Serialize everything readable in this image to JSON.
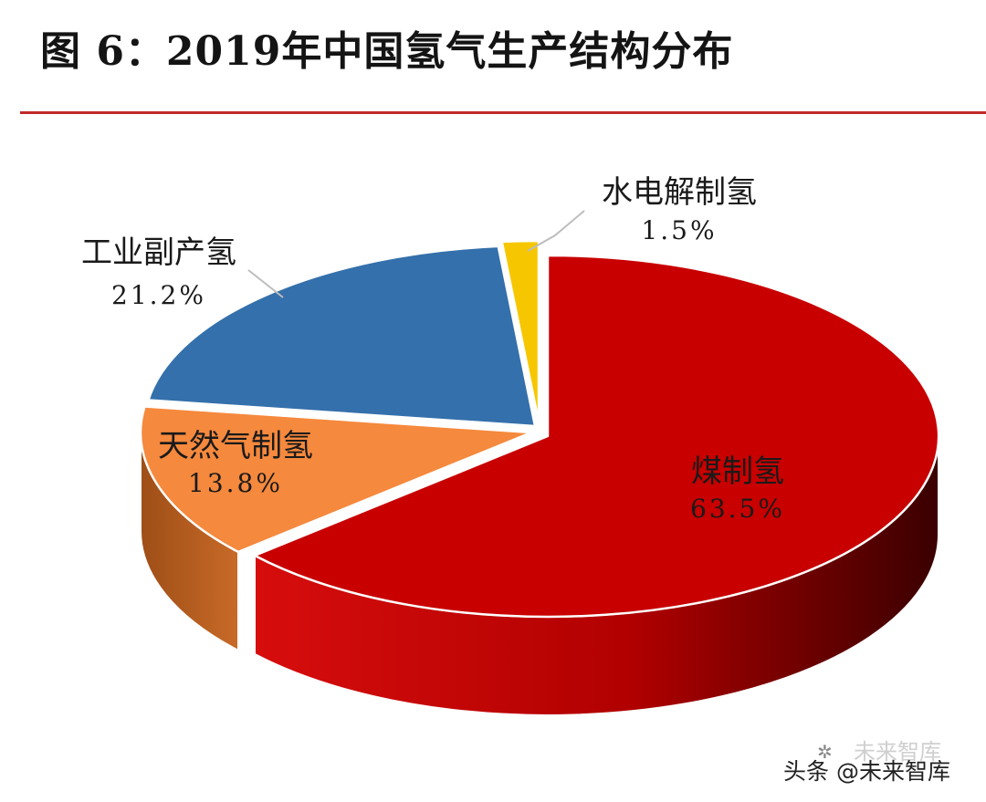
{
  "figure_title": "图 6：2019年中国氢气生产结构分布",
  "watermark": {
    "text": "头条 @未来智库",
    "ghost_text": "未来智库",
    "logo_icon": "wechat-channel-icon"
  },
  "colors": {
    "rule": "#c0292b",
    "leader_line": "#bdbdbd"
  },
  "chart_data": {
    "type": "pie",
    "style": "3d-exploded",
    "title": "",
    "series": [
      {
        "name": "煤制氢",
        "label": "煤制氢",
        "value": 63.5,
        "value_label": "63.5%",
        "color": "#c80000"
      },
      {
        "name": "天然气制氢",
        "label": "天然气制氢",
        "value": 13.8,
        "value_label": "13.8%",
        "color": "#f5893d"
      },
      {
        "name": "工业副产氢",
        "label": "工业副产氢",
        "value": 21.2,
        "value_label": "21.2%",
        "color": "#3470ab"
      },
      {
        "name": "水电解制氢",
        "label": "水电解制氢",
        "value": 1.5,
        "value_label": "1.5%",
        "color": "#f6c700"
      }
    ]
  }
}
